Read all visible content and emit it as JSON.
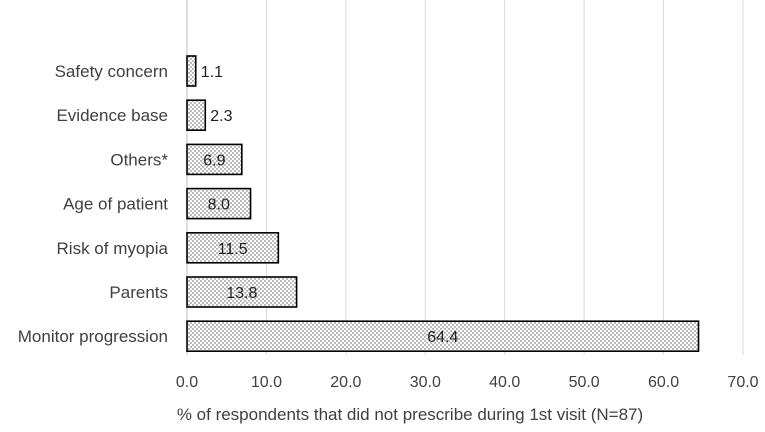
{
  "chart_data": {
    "type": "bar",
    "orientation": "horizontal",
    "categories": [
      "Safety concern",
      "Evidence base",
      "Others*",
      "Age of patient",
      "Risk of myopia",
      "Parents",
      "Monitor progression"
    ],
    "values": [
      1.1,
      2.3,
      6.9,
      8.0,
      11.5,
      13.8,
      64.4
    ],
    "value_labels": [
      "1.1",
      "2.3",
      "6.9",
      "8.0",
      "11.5",
      "13.8",
      "64.4"
    ],
    "xlabel": "% of respondents that did not prescribe during 1st visit (N=87)",
    "ylabel": "",
    "xlim": [
      0,
      70
    ],
    "xticks": [
      "0.0",
      "10.0",
      "20.0",
      "30.0",
      "40.0",
      "50.0",
      "60.0",
      "70.0"
    ],
    "grid": "vertical",
    "bar_fill": "dotted pattern",
    "colors": {
      "grid": "#d9d9d9",
      "bar_stroke": "#000000",
      "dots": "#555555",
      "text": "#404040"
    }
  }
}
